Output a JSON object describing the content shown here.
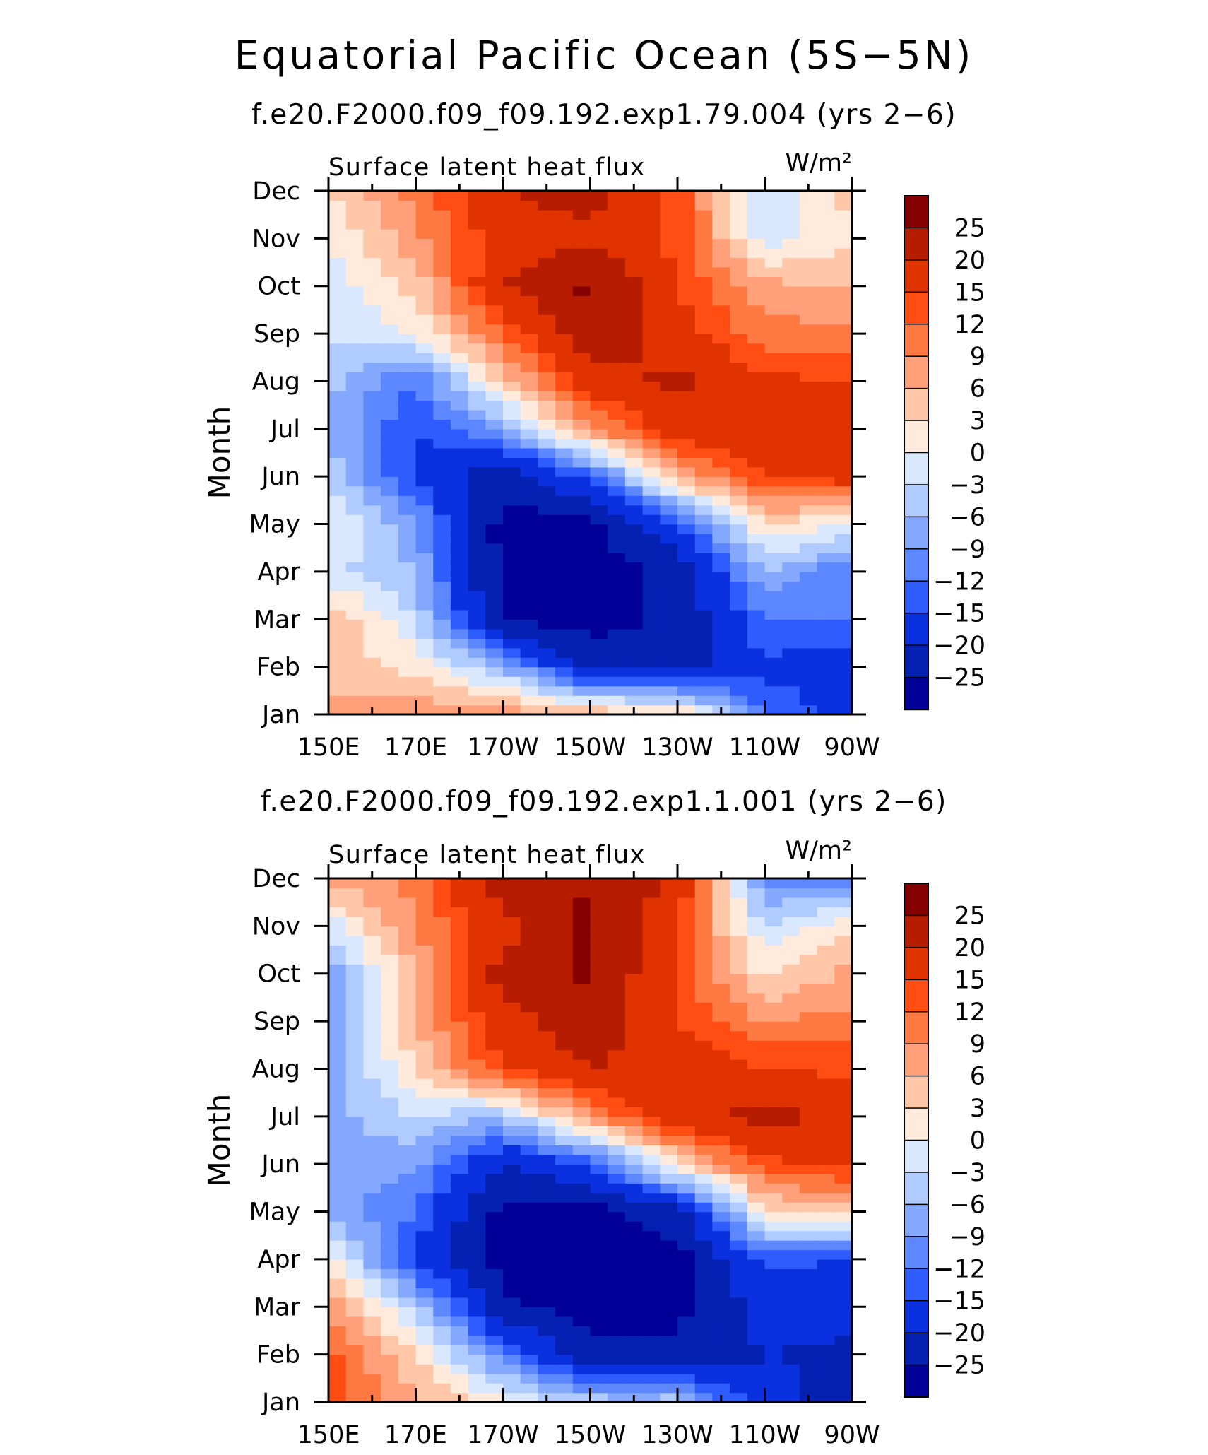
{
  "title": "Equatorial Pacific Ocean (5S−5N)",
  "panels": [
    {
      "subtitle": "f.e20.F2000.f09_f09.192.exp1.79.004 (yrs 2−6)"
    },
    {
      "subtitle": "f.e20.F2000.f09_f09.192.exp1.1.001 (yrs 2−6)"
    }
  ],
  "chart_data": [
    {
      "type": "heatmap",
      "title": "f.e20.F2000.f09_f09.192.exp1.79.004 (yrs 2−6)",
      "variable": "Surface latent heat flux",
      "units": "W/m²",
      "xlabel": "",
      "ylabel": "Month",
      "x": [
        "150E",
        "170E",
        "170W",
        "150W",
        "130W",
        "110W",
        "90W"
      ],
      "y": [
        "Jan",
        "Feb",
        "Mar",
        "Apr",
        "May",
        "Jun",
        "Jul",
        "Aug",
        "Sep",
        "Oct",
        "Nov",
        "Dec"
      ],
      "z": [
        [
          7,
          9,
          8,
          6,
          4,
          -12,
          -17
        ],
        [
          5,
          2,
          -6,
          -22,
          -22,
          -16,
          -17
        ],
        [
          6,
          -3,
          -26,
          -27,
          -24,
          -12,
          -12
        ],
        [
          -2,
          -6,
          -27,
          -27,
          -24,
          -6,
          -12
        ],
        [
          1,
          -8,
          -27,
          -27,
          -15,
          3,
          0
        ],
        [
          -4,
          -16,
          -24,
          -14,
          6,
          15,
          17
        ],
        [
          -6,
          -15,
          -8,
          8,
          18,
          18,
          18
        ],
        [
          -5,
          -12,
          4,
          18,
          21,
          16,
          15
        ],
        [
          -3,
          0,
          12,
          24,
          17,
          10,
          10
        ],
        [
          -2,
          4,
          20,
          26,
          15,
          7,
          6
        ],
        [
          0,
          8,
          17,
          19,
          14,
          -2,
          3
        ],
        [
          3,
          10,
          20,
          22,
          14,
          -3,
          4
        ]
      ],
      "colorbar": {
        "labels": [
          "25",
          "20",
          "15",
          "12",
          "9",
          "6",
          "3",
          "0",
          "−3",
          "−6",
          "−9",
          "−12",
          "−15",
          "−20",
          "−25"
        ],
        "levels": [
          25,
          20,
          15,
          12,
          9,
          6,
          3,
          0,
          -3,
          -6,
          -9,
          -12,
          -15,
          -20,
          -25
        ],
        "colors": [
          "#850000",
          "#b51c00",
          "#e03300",
          "#ff4d14",
          "#ff7a42",
          "#ffa07a",
          "#ffc7a8",
          "#ffeadb",
          "#d9e8ff",
          "#b0cbff",
          "#85a8ff",
          "#5c87ff",
          "#2e5cff",
          "#0a30e0",
          "#0521b2",
          "#000099"
        ]
      }
    },
    {
      "type": "heatmap",
      "title": "f.e20.F2000.f09_f09.192.exp1.1.001 (yrs 2−6)",
      "variable": "Surface latent heat flux",
      "units": "W/m²",
      "xlabel": "",
      "ylabel": "Month",
      "x": [
        "150E",
        "170E",
        "170W",
        "150W",
        "130W",
        "110W",
        "90W"
      ],
      "y": [
        "Jan",
        "Feb",
        "Mar",
        "Apr",
        "May",
        "Jun",
        "Jul",
        "Aug",
        "Sep",
        "Oct",
        "Nov",
        "Dec"
      ],
      "z": [
        [
          14,
          7,
          1,
          -4,
          -4,
          -18,
          -22
        ],
        [
          13,
          3,
          -11,
          -24,
          -24,
          -20,
          -21
        ],
        [
          8,
          -4,
          -24,
          -27,
          -26,
          -18,
          -18
        ],
        [
          2,
          -17,
          -27,
          -27,
          -27,
          -14,
          -15
        ],
        [
          -7,
          -12,
          -27,
          -27,
          -22,
          2,
          4
        ],
        [
          -8,
          -8,
          -20,
          -15,
          3,
          14,
          16
        ],
        [
          -7,
          -3,
          -6,
          9,
          18,
          22,
          18
        ],
        [
          -8,
          3,
          15,
          20,
          18,
          15,
          14
        ],
        [
          -9,
          6,
          18,
          23,
          15,
          9,
          10
        ],
        [
          -8,
          6,
          22,
          26,
          14,
          2,
          7
        ],
        [
          -2,
          9,
          18,
          26,
          14,
          -3,
          3
        ],
        [
          7,
          10,
          23,
          25,
          20,
          -10,
          -12
        ]
      ],
      "colorbar": {
        "labels": [
          "25",
          "20",
          "15",
          "12",
          "9",
          "6",
          "3",
          "0",
          "−3",
          "−6",
          "−9",
          "−12",
          "−15",
          "−20",
          "−25"
        ],
        "levels": [
          25,
          20,
          15,
          12,
          9,
          6,
          3,
          0,
          -3,
          -6,
          -9,
          -12,
          -15,
          -20,
          -25
        ],
        "colors": [
          "#850000",
          "#b51c00",
          "#e03300",
          "#ff4d14",
          "#ff7a42",
          "#ffa07a",
          "#ffc7a8",
          "#ffeadb",
          "#d9e8ff",
          "#b0cbff",
          "#85a8ff",
          "#5c87ff",
          "#2e5cff",
          "#0a30e0",
          "#0521b2",
          "#000099"
        ]
      }
    }
  ]
}
